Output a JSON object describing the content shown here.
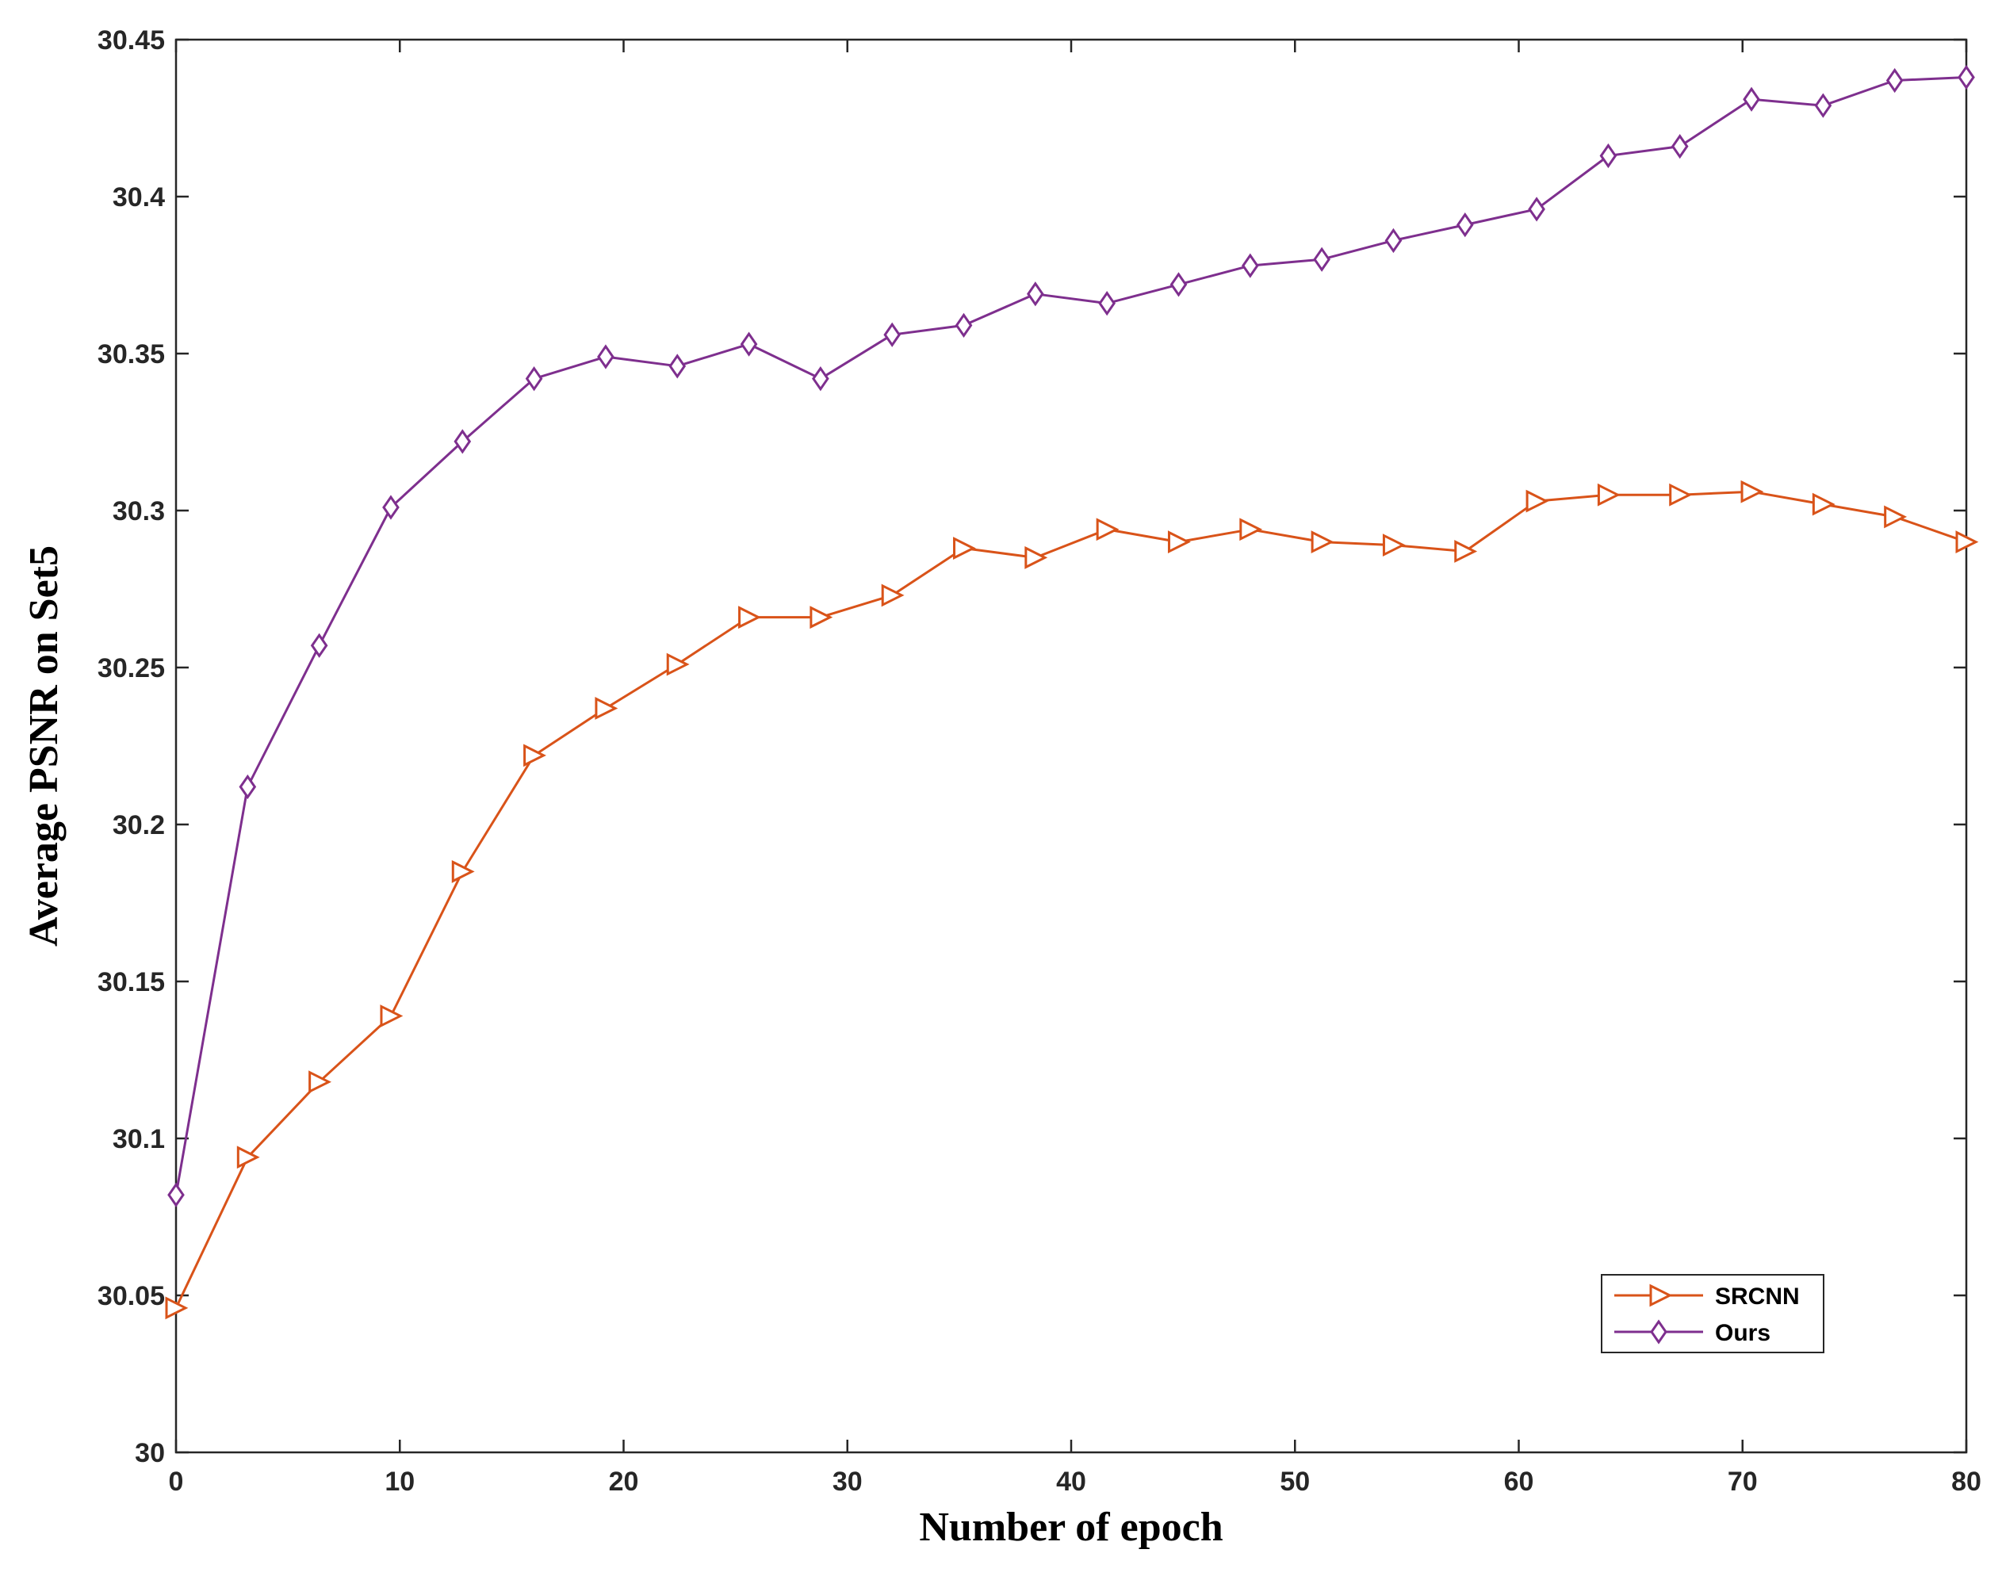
{
  "chart_data": {
    "type": "line",
    "title": "",
    "xlabel": "Number of epoch",
    "ylabel": "Average PSNR on Set5",
    "xlim": [
      0,
      80
    ],
    "ylim": [
      30,
      30.45
    ],
    "xticks": [
      0,
      10,
      20,
      30,
      40,
      50,
      60,
      70,
      80
    ],
    "xtick_labels": [
      "0",
      "10",
      "20",
      "30",
      "40",
      "50",
      "60",
      "70",
      "80"
    ],
    "yticks": [
      30,
      30.05,
      30.1,
      30.15,
      30.2,
      30.25,
      30.3,
      30.35,
      30.4,
      30.45
    ],
    "ytick_labels": [
      "30",
      "30.05",
      "30.1",
      "30.15",
      "30.2",
      "30.25",
      "30.3",
      "30.35",
      "30.4",
      "30.45"
    ],
    "grid": false,
    "legend_position": "bottom-right",
    "x": [
      0,
      3.2,
      6.4,
      9.6,
      12.8,
      16,
      19.2,
      22.4,
      25.6,
      28.8,
      32,
      35.2,
      38.4,
      41.6,
      44.8,
      48,
      51.2,
      54.4,
      57.6,
      60.8,
      64,
      67.2,
      70.4,
      73.6,
      76.8,
      80
    ],
    "series": [
      {
        "name": "SRCNN",
        "color": "#D95319",
        "marker": "triangle-right",
        "values": [
          30.046,
          30.094,
          30.118,
          30.139,
          30.185,
          30.222,
          30.237,
          30.251,
          30.266,
          30.266,
          30.273,
          30.288,
          30.285,
          30.294,
          30.29,
          30.294,
          30.29,
          30.289,
          30.287,
          30.303,
          30.305,
          30.305,
          30.306,
          30.302,
          30.298,
          30.29
        ]
      },
      {
        "name": "Ours",
        "color": "#7E2F8E",
        "marker": "diamond",
        "values": [
          30.082,
          30.212,
          30.257,
          30.301,
          30.322,
          30.342,
          30.349,
          30.346,
          30.353,
          30.342,
          30.356,
          30.359,
          30.369,
          30.366,
          30.372,
          30.378,
          30.38,
          30.386,
          30.391,
          30.396,
          30.413,
          30.416,
          30.431,
          30.429,
          30.437,
          30.438
        ]
      }
    ]
  }
}
